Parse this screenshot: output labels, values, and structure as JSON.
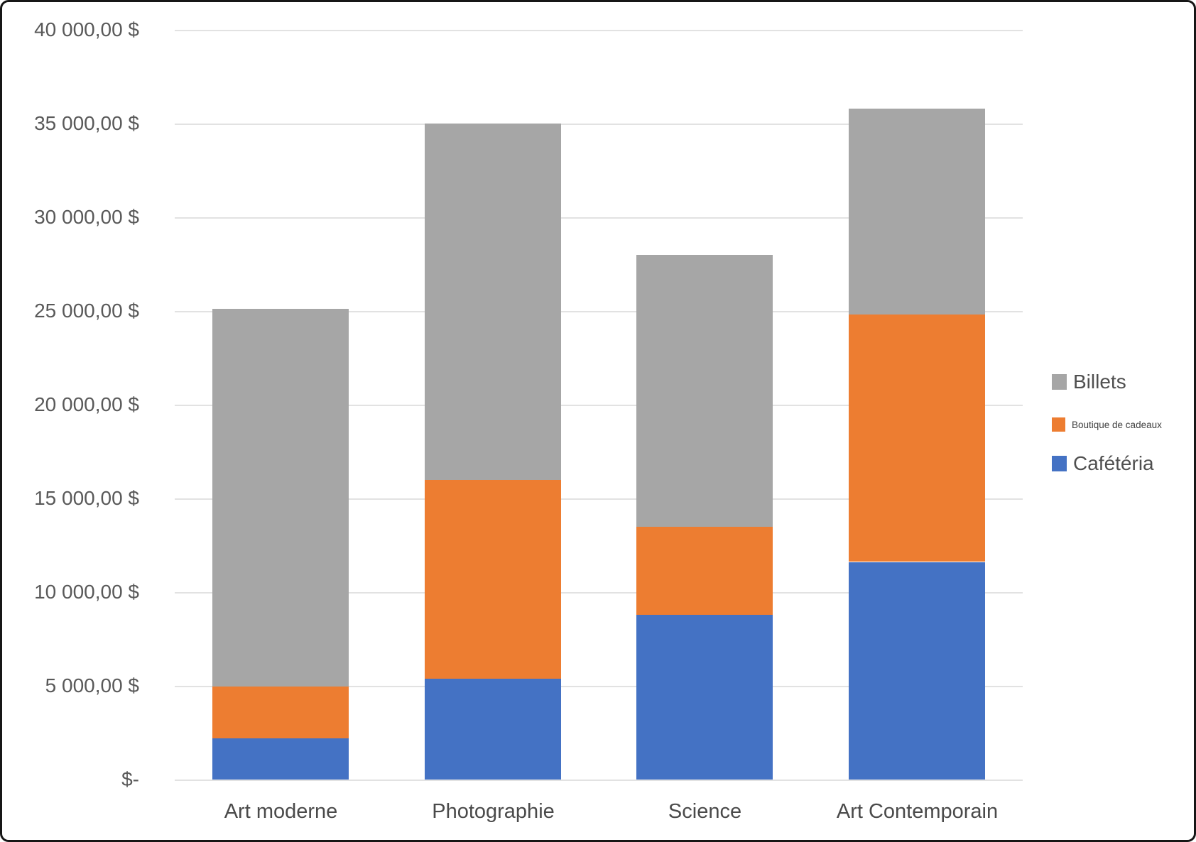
{
  "chart_data": {
    "type": "bar",
    "stacked": true,
    "title": "",
    "categories": [
      "Art moderne",
      "Photographie",
      "Science",
      "Art Contemporain"
    ],
    "series": [
      {
        "name": "Cafétéria",
        "color": "#4472C4",
        "values": [
          2200,
          5400,
          8800,
          11600
        ]
      },
      {
        "name": "Boutique de cadeaux",
        "color": "#ED7D31",
        "values": [
          2750,
          10600,
          4700,
          13200
        ]
      },
      {
        "name": "Billets",
        "color": "#A6A6A6",
        "values": [
          20150,
          19000,
          14500,
          11000
        ]
      }
    ],
    "stack_totals": [
      25100,
      35000,
      28000,
      35800
    ],
    "y_axis": {
      "min": 0,
      "max": 40000,
      "step": 5000,
      "tick_labels": [
        "$-",
        "5 000,00 $",
        "10 000,00 $",
        "15 000,00 $",
        "20 000,00 $",
        "25 000,00 $",
        "30 000,00 $",
        "35 000,00 $",
        "40 000,00 $"
      ]
    },
    "xlabel": "",
    "ylabel": "",
    "grid": true,
    "legend": {
      "position": "right",
      "entries": [
        {
          "label": "Billets",
          "color": "#A6A6A6",
          "text_size": "large"
        },
        {
          "label": "Boutique de cadeaux",
          "color": "#ED7D31",
          "text_size": "small"
        },
        {
          "label": "Cafétéria",
          "color": "#4472C4",
          "text_size": "large"
        }
      ]
    }
  },
  "styles": {
    "grid_color": "#e2e2e2",
    "y_axis_text_color": "#595959",
    "x_axis_text_color": "#4a4a4a",
    "frame_border_color": "#161616",
    "background": "#ffffff"
  }
}
